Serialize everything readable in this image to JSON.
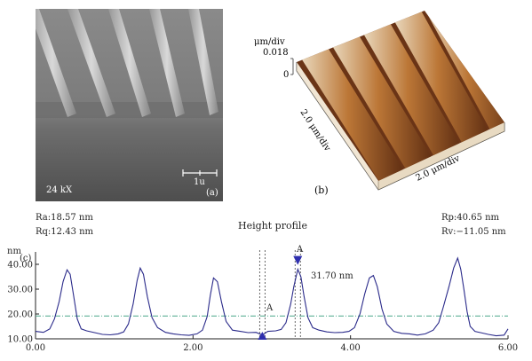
{
  "panel_a": {
    "magnification": "24 kX",
    "scale_bar": "1u",
    "tag": "(a)"
  },
  "panel_b": {
    "z_unit": "μm/div",
    "z_max": "0.018",
    "z_zero": "0",
    "y_axis": "2.0 μm/div",
    "x_axis": "2.0 μm/div",
    "tag": "(b)"
  },
  "panel_c": {
    "tag": "(c)",
    "title": "Height profile",
    "ra": "Ra:18.57 nm",
    "rq": "Rq:12.43 nm",
    "rp": "Rp:40.65 nm",
    "rv": "Rv:−11.05 nm",
    "annotation": "31.70 nm",
    "marker_a1": "A",
    "marker_a2": "A",
    "colors": {
      "trace": "#2a2a8a",
      "reference": "#4aa88a",
      "marker": "#2f2fae"
    }
  },
  "chart_data": {
    "type": "line",
    "title": "Height profile",
    "xlabel": "",
    "ylabel": "nm",
    "xlim": [
      0,
      6
    ],
    "ylim": [
      10,
      45
    ],
    "x_ticks": [
      "0.00",
      "2.00",
      "4.00",
      "6.00"
    ],
    "y_ticks": [
      "10.00",
      "20.00",
      "30.00",
      "40.00"
    ],
    "reference_line": 19.2,
    "cursor_x": [
      2.88,
      3.33
    ],
    "series": [
      {
        "x": [
          0.0,
          0.1,
          0.18,
          0.24,
          0.3,
          0.35,
          0.4,
          0.44,
          0.48,
          0.53,
          0.58,
          0.65,
          0.75,
          0.85,
          0.95,
          1.05,
          1.12,
          1.18,
          1.24,
          1.29,
          1.33,
          1.37,
          1.42,
          1.48,
          1.55,
          1.65,
          1.75,
          1.85,
          1.95,
          2.05,
          2.12,
          2.18,
          2.22,
          2.26,
          2.31,
          2.36,
          2.42,
          2.5,
          2.6,
          2.7,
          2.8,
          2.88,
          2.95,
          3.05,
          3.12,
          3.18,
          3.24,
          3.28,
          3.33,
          3.37,
          3.41,
          3.46,
          3.52,
          3.6,
          3.7,
          3.8,
          3.9,
          3.98,
          4.05,
          4.12,
          4.18,
          4.24,
          4.29,
          4.34,
          4.4,
          4.46,
          4.55,
          4.65,
          4.75,
          4.85,
          4.95,
          5.05,
          5.12,
          5.18,
          5.25,
          5.31,
          5.36,
          5.4,
          5.44,
          5.48,
          5.52,
          5.58,
          5.65,
          5.75,
          5.85,
          5.95,
          6.0
        ],
        "values": [
          13.0,
          12.6,
          14.0,
          18.0,
          25.0,
          33.0,
          37.8,
          36.0,
          28.0,
          18.0,
          14.0,
          13.2,
          12.5,
          11.8,
          11.6,
          12.0,
          12.8,
          16.0,
          24.0,
          33.5,
          38.5,
          36.0,
          27.0,
          18.5,
          14.5,
          12.6,
          12.0,
          11.6,
          11.4,
          12.0,
          13.5,
          19.0,
          27.5,
          34.5,
          33.0,
          25.0,
          17.0,
          13.5,
          13.0,
          12.5,
          12.6,
          11.5,
          13.0,
          13.2,
          13.8,
          16.5,
          24.0,
          31.0,
          38.0,
          35.0,
          27.0,
          18.5,
          14.5,
          13.5,
          12.8,
          12.5,
          12.6,
          13.0,
          14.5,
          20.0,
          28.0,
          34.5,
          35.5,
          31.0,
          22.0,
          16.0,
          13.0,
          12.2,
          12.0,
          11.5,
          12.0,
          13.5,
          16.5,
          23.0,
          31.0,
          38.5,
          42.5,
          38.0,
          30.0,
          21.0,
          15.0,
          13.0,
          12.5,
          11.8,
          11.2,
          11.5,
          14.0
        ]
      }
    ]
  }
}
